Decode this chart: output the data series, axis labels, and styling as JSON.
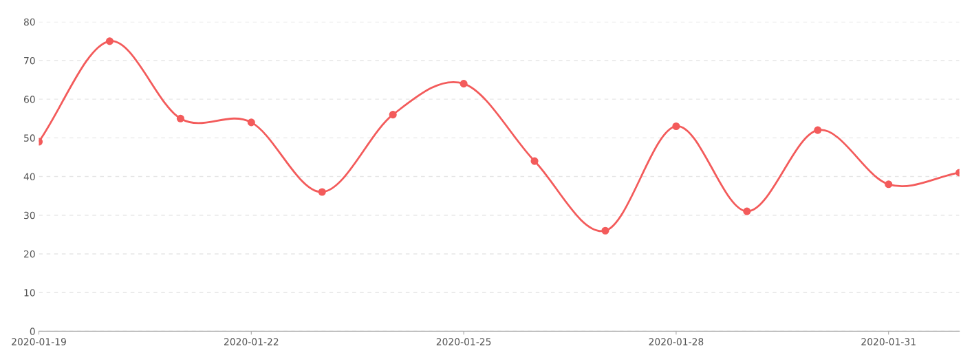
{
  "chart_data": {
    "type": "line",
    "x": [
      "2020-01-19",
      "2020-01-20",
      "2020-01-21",
      "2020-01-22",
      "2020-01-23",
      "2020-01-24",
      "2020-01-25",
      "2020-01-26",
      "2020-01-27",
      "2020-01-28",
      "2020-01-29",
      "2020-01-30",
      "2020-01-31",
      "2020-02-01"
    ],
    "series": [
      {
        "color": "#f35b5b",
        "values": [
          49,
          75,
          55,
          54,
          36,
          56,
          64,
          44,
          26,
          53,
          31,
          52,
          38,
          41
        ]
      }
    ],
    "xlim": [
      "2020-01-19",
      "2020-02-01"
    ],
    "xticks": [
      "2020-01-19",
      "2020-01-22",
      "2020-01-25",
      "2020-01-28",
      "2020-01-31"
    ],
    "ylim": [
      0,
      80
    ],
    "yticks": [
      0,
      10,
      20,
      30,
      40,
      50,
      60,
      70,
      80
    ],
    "grid": "y",
    "marker": "circle",
    "line_style": "solid"
  }
}
